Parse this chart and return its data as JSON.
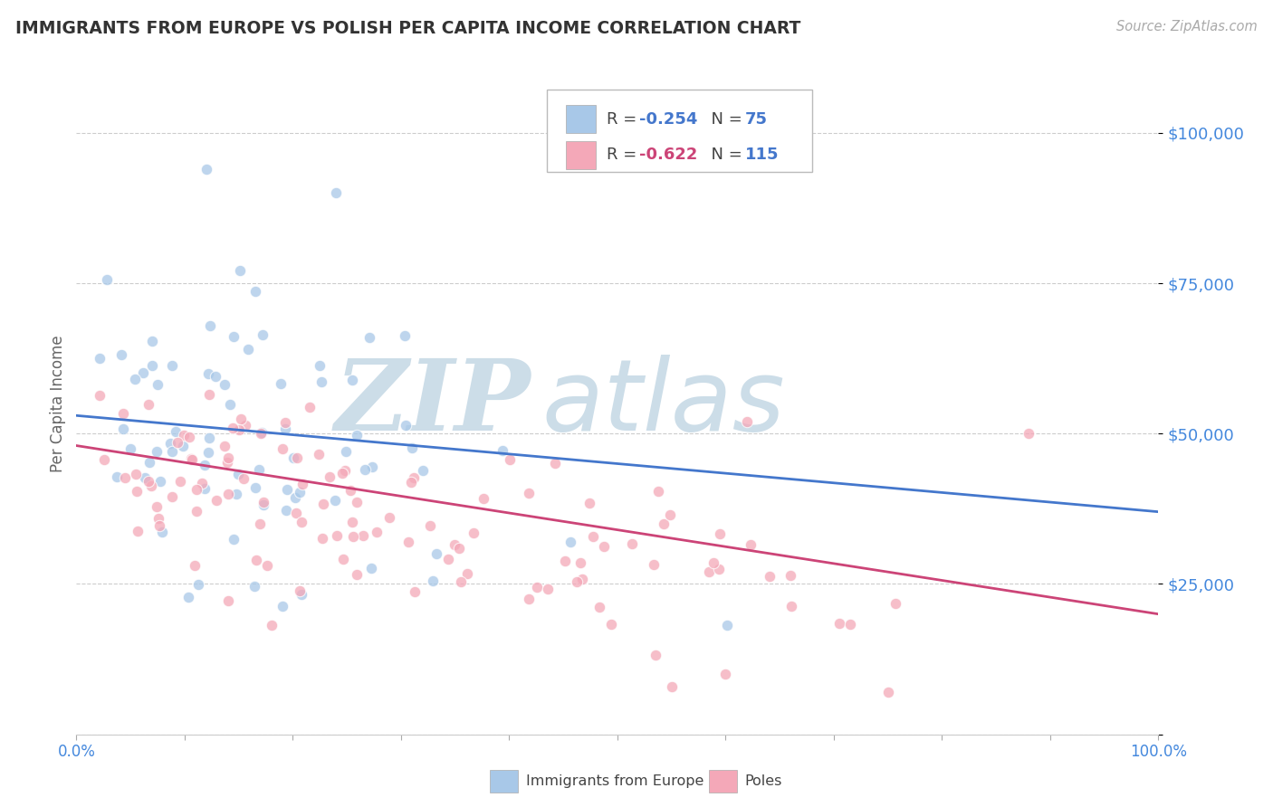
{
  "title": "IMMIGRANTS FROM EUROPE VS POLISH PER CAPITA INCOME CORRELATION CHART",
  "source": "Source: ZipAtlas.com",
  "ylabel": "Per Capita Income",
  "yticks": [
    0,
    25000,
    50000,
    75000,
    100000
  ],
  "xlim": [
    0,
    1
  ],
  "ylim": [
    0,
    110000
  ],
  "blue_R": -0.254,
  "blue_N": 75,
  "pink_R": -0.622,
  "pink_N": 115,
  "blue_color": "#a8c8e8",
  "pink_color": "#f4a8b8",
  "blue_line_color": "#4477cc",
  "pink_line_color": "#cc4477",
  "title_color": "#333333",
  "axis_label_color": "#4488dd",
  "watermark_zip": "ZIP",
  "watermark_atlas": "atlas",
  "watermark_color": "#ccdde8",
  "background_color": "#ffffff",
  "grid_color": "#cccccc",
  "blue_line_y0": 53000,
  "blue_line_y1": 37000,
  "pink_line_y0": 48000,
  "pink_line_y1": 20000,
  "marker_size": 80
}
